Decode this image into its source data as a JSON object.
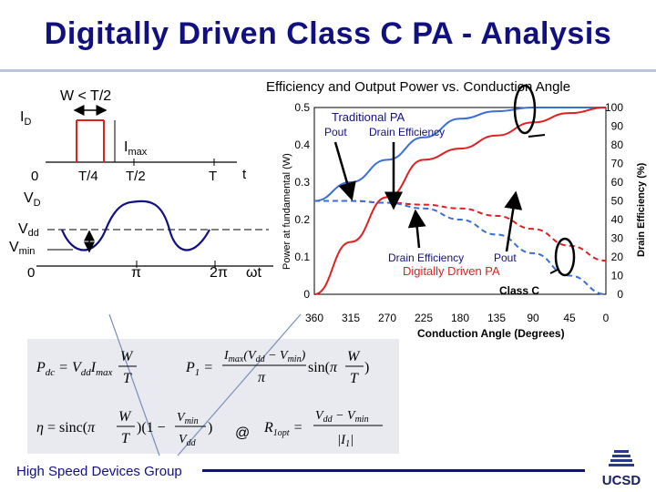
{
  "title": "Digitally Driven Class C PA - Analysis",
  "left_diagram": {
    "w_label": "W < T/2",
    "id_label": "I",
    "id_sub": "D",
    "imax_label": "I",
    "imax_sub": "max",
    "zero_label": "0",
    "t4_label": "T/4",
    "t2_label": "T/2",
    "T_label": "T",
    "t_label": "t",
    "vd_label": "V",
    "vd_sub": "D",
    "vdd_label": "V",
    "vdd_sub": "dd",
    "vmin_label": "V",
    "vmin_sub": "min",
    "zero2_label": "0",
    "pi_label": "π",
    "twopi_label": "2π",
    "wt_label": "ωt"
  },
  "chart_data": {
    "type": "line",
    "title": "Efficiency and Output Power vs. Conduction Angle",
    "xlabel": "Conduction Angle (Degrees)",
    "ylabel": "Power at fundamental (W)",
    "y2label": "Drain Efficiency (%)",
    "x_ticks": [
      "360",
      "315",
      "270",
      "225",
      "180",
      "135",
      "90",
      "45",
      "0"
    ],
    "xlim": [
      360,
      0
    ],
    "ylim": [
      0,
      0.5
    ],
    "y_ticks": [
      "0",
      "0.1",
      "0.2",
      "0.3",
      "0.4",
      "0.5"
    ],
    "y2lim": [
      0,
      100
    ],
    "y2_ticks": [
      "0",
      "10",
      "20",
      "30",
      "40",
      "50",
      "60",
      "70",
      "80",
      "90",
      "100"
    ],
    "series": [
      {
        "name": "Pout",
        "group": "Traditional PA",
        "style": "solid",
        "color": "#3a6fd6",
        "axis": "left",
        "x": [
          360,
          315,
          270,
          225,
          180,
          135,
          90,
          45,
          0
        ],
        "y": [
          0.25,
          0.3,
          0.36,
          0.42,
          0.47,
          0.49,
          0.5,
          0.5,
          0.5
        ]
      },
      {
        "name": "Drain Efficiency",
        "group": "Traditional PA",
        "style": "solid",
        "color": "#e02020",
        "axis": "right",
        "x": [
          360,
          315,
          270,
          225,
          180,
          135,
          90,
          45,
          0
        ],
        "y": [
          0,
          28,
          52,
          72,
          78,
          85,
          92,
          97,
          100
        ]
      },
      {
        "name": "Drain Efficiency",
        "group": "Digitally Driven PA",
        "style": "dashed",
        "color": "#e02020",
        "axis": "right",
        "x": [
          360,
          315,
          270,
          225,
          180,
          135,
          90,
          45,
          0
        ],
        "y": [
          50,
          50,
          49,
          48,
          46,
          42,
          35,
          26,
          18
        ]
      },
      {
        "name": "Pout",
        "group": "Digitally Driven PA",
        "style": "dashed",
        "color": "#3a6fd6",
        "axis": "left",
        "x": [
          360,
          315,
          270,
          225,
          180,
          135,
          90,
          45,
          0
        ],
        "y": [
          0.25,
          0.25,
          0.245,
          0.23,
          0.2,
          0.16,
          0.11,
          0.05,
          0.0
        ]
      }
    ],
    "annotations": {
      "trad_title": "Traditional PA",
      "trad_pout": "Pout",
      "trad_eff": "Drain Efficiency",
      "dig_eff": "Drain Efficiency",
      "dig_pout": "Pout",
      "dig_title": "Digitally Driven PA",
      "class_c": "Class C"
    }
  },
  "formulas": {
    "pdc": "P_dc = V_dd·I_max·W/T",
    "p1": "P_1 = (I_max(V_dd − V_min)/π)·sin(πW/T)",
    "eta": "η = sinc(πW/T)(1 − V_min/V_dd)",
    "at": "@",
    "ropt": "R_1opt = (V_dd − V_min)/|I_1|"
  },
  "footer": "High Speed Devices Group",
  "logo_text": "UCSD",
  "colors": {
    "title": "#101080",
    "blue_curve": "#3a6fd6",
    "red_curve": "#e02020",
    "chart_bg": "#ffffff"
  }
}
